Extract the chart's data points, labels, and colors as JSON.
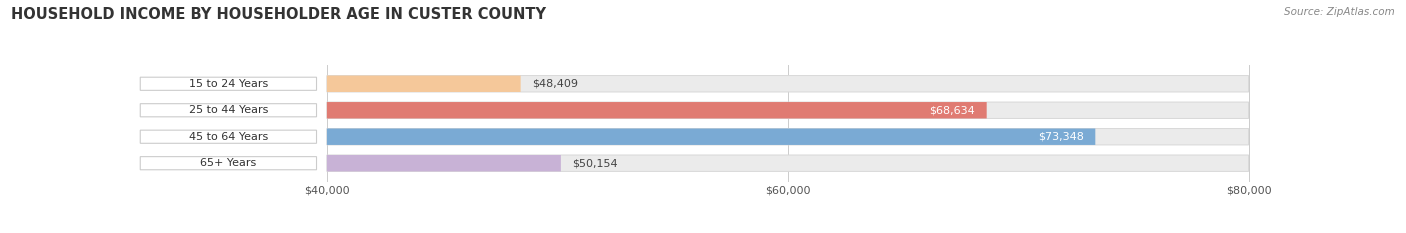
{
  "title": "HOUSEHOLD INCOME BY HOUSEHOLDER AGE IN CUSTER COUNTY",
  "source": "Source: ZipAtlas.com",
  "categories": [
    "15 to 24 Years",
    "25 to 44 Years",
    "45 to 64 Years",
    "65+ Years"
  ],
  "values": [
    48409,
    68634,
    73348,
    50154
  ],
  "bar_colors": [
    "#f5c89a",
    "#e07b72",
    "#7aaad4",
    "#c8b2d6"
  ],
  "label_colors_inside": [
    "#333333",
    "#ffffff",
    "#ffffff",
    "#333333"
  ],
  "xmin": 40000,
  "xmax": 80000,
  "xticks": [
    40000,
    60000,
    80000
  ],
  "xtick_labels": [
    "$40,000",
    "$60,000",
    "$80,000"
  ],
  "bg_color": "#ffffff",
  "bar_bg_color": "#ebebeb",
  "bar_bg_edge_color": "#d8d8d8",
  "title_fontsize": 10.5,
  "source_fontsize": 7.5,
  "bar_label_fontsize": 8,
  "tick_fontsize": 8,
  "category_fontsize": 8,
  "bar_height": 0.62,
  "value_labels": [
    "$48,409",
    "$68,634",
    "$73,348",
    "$50,154"
  ],
  "label_inside": [
    false,
    true,
    true,
    false
  ]
}
